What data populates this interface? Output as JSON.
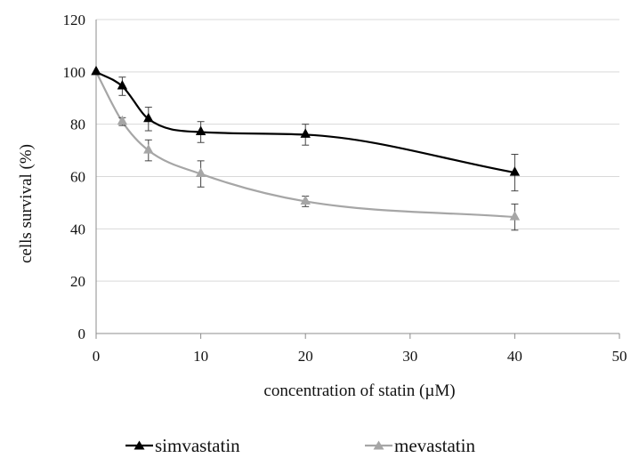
{
  "chart_data": {
    "type": "line",
    "title": "",
    "xlabel": "concentration of statin (µM)",
    "ylabel": "cells survival (%)",
    "xlim": [
      0,
      50
    ],
    "ylim": [
      0,
      120
    ],
    "xticks": [
      0,
      10,
      20,
      30,
      40,
      50
    ],
    "yticks": [
      0,
      20,
      40,
      60,
      80,
      100,
      120
    ],
    "grid": "horizontal",
    "legend_position": "bottom",
    "smooth": true,
    "series": [
      {
        "name": "simvastatin",
        "color": "#000000",
        "marker": "triangle",
        "x": [
          0,
          2.5,
          5,
          10,
          20,
          40
        ],
        "y": [
          100,
          94.5,
          82,
          77,
          76,
          61.5
        ],
        "err": [
          0,
          3.5,
          4.5,
          4,
          4,
          7
        ]
      },
      {
        "name": "mevastatin",
        "color": "#a6a6a6",
        "marker": "triangle",
        "x": [
          0,
          2.5,
          5,
          10,
          20,
          40
        ],
        "y": [
          100,
          81,
          70,
          61,
          50.5,
          44.5
        ],
        "err": [
          0,
          1.5,
          4,
          5,
          2,
          5
        ]
      }
    ]
  }
}
